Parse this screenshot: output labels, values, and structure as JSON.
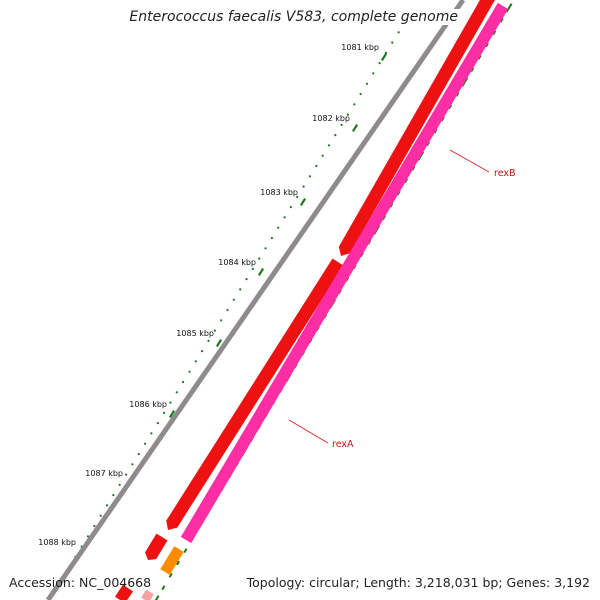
{
  "title": "Enterococcus faecalis V583, complete genome",
  "footer": {
    "accession_label": "Accession:",
    "accession": "NC_004668",
    "summary": "Topology: circular; Length: 3,218,031 bp; Genes: 3,192"
  },
  "colors": {
    "backbone": "#8e8a8e",
    "forward_gene": "#ee1111",
    "reverse_gene": "#ff2ea5",
    "tick": "#1a7a1a",
    "label_line": "#dd2222",
    "label_text": "#cc1111",
    "small_gene": "#ff8c00"
  },
  "scale": {
    "unit": "kbp",
    "major_ticks": [
      "1081 kbp",
      "1082 kbp",
      "1083 kbp",
      "1084 kbp",
      "1085 kbp",
      "1086 kbp",
      "1087 kbp",
      "1088 kbp"
    ]
  },
  "features": [
    {
      "name": "rexB",
      "strand": "reverse",
      "color_key": "reverse_gene"
    },
    {
      "name": "rexA",
      "strand": "reverse",
      "color_key": "reverse_gene"
    }
  ]
}
